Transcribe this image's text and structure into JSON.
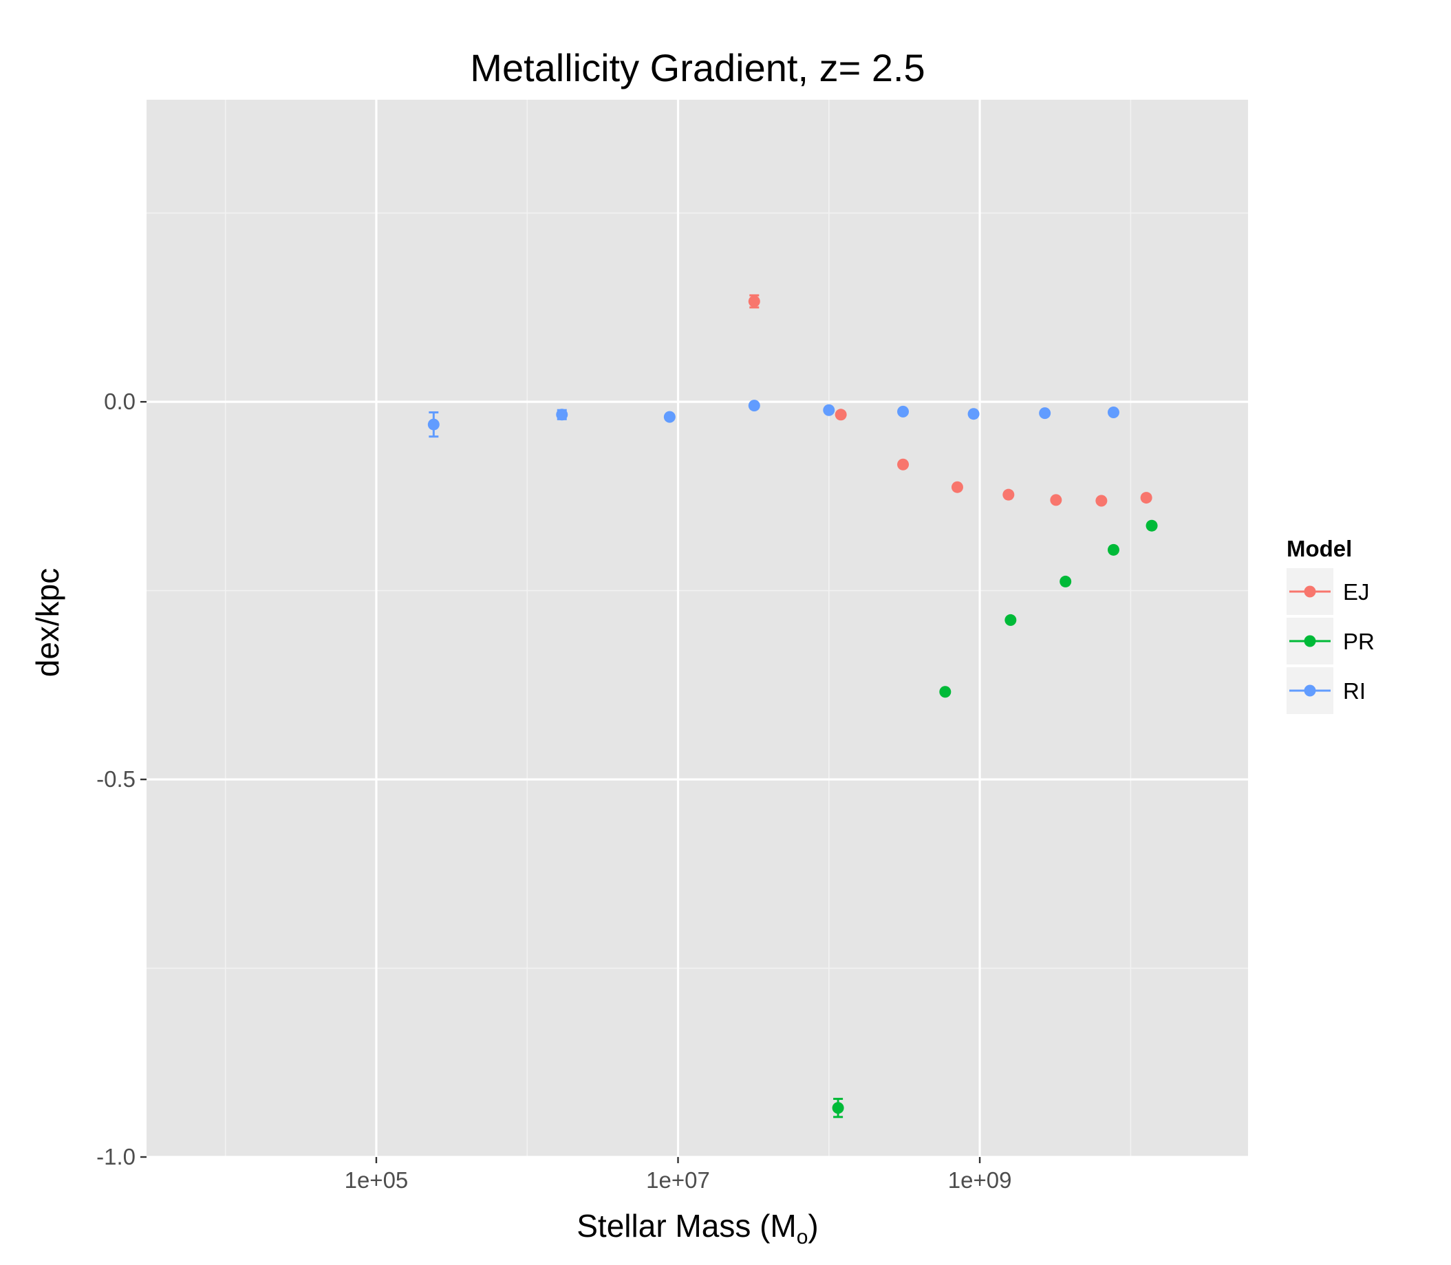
{
  "chart_data": {
    "type": "scatter",
    "title": "Metallicity Gradient, z= 2.5",
    "xlabel_main": "Stellar Mass (M",
    "xlabel_sub": "o",
    "xlabel_close": ")",
    "ylabel": "dex/kpc",
    "x_scale": "log10",
    "xlim": [
      3000.0,
      60000000000.0
    ],
    "ylim": [
      -1.0,
      0.4
    ],
    "x_ticks": [
      100000,
      10000000,
      1000000000
    ],
    "x_tick_labels": [
      "1e+05",
      "1e+07",
      "1e+09"
    ],
    "y_ticks": [
      0.0,
      -0.5,
      -1.0
    ],
    "y_tick_labels": [
      "0.0",
      "-0.5",
      "-1.0"
    ],
    "grid": true,
    "legend": {
      "title": "Model",
      "position": "right",
      "entries": [
        "EJ",
        "PR",
        "RI"
      ]
    },
    "series": [
      {
        "name": "EJ",
        "color": "#F8766D",
        "points": [
          {
            "x": 32000000.0,
            "y": 0.133,
            "err": 0.008
          },
          {
            "x": 120000000.0,
            "y": -0.017,
            "err": 0.0
          },
          {
            "x": 310000000.0,
            "y": -0.083,
            "err": 0.0
          },
          {
            "x": 710000000.0,
            "y": -0.113,
            "err": 0.0
          },
          {
            "x": 1550000000.0,
            "y": -0.123,
            "err": 0.0
          },
          {
            "x": 3200000000.0,
            "y": -0.13,
            "err": 0.0
          },
          {
            "x": 6400000000.0,
            "y": -0.131,
            "err": 0.0
          },
          {
            "x": 12700000000.0,
            "y": -0.127,
            "err": 0.0
          }
        ]
      },
      {
        "name": "PR",
        "color": "#00BA38",
        "points": [
          {
            "x": 115000000.0,
            "y": -0.935,
            "err": 0.012
          },
          {
            "x": 590000000.0,
            "y": -0.384,
            "err": 0.0
          },
          {
            "x": 1600000000.0,
            "y": -0.289,
            "err": 0.0
          },
          {
            "x": 3700000000.0,
            "y": -0.238,
            "err": 0.0
          },
          {
            "x": 7700000000.0,
            "y": -0.196,
            "err": 0.0
          },
          {
            "x": 13800000000.0,
            "y": -0.164,
            "err": 0.0
          }
        ]
      },
      {
        "name": "RI",
        "color": "#619CFF",
        "points": [
          {
            "x": 240000.0,
            "y": -0.03,
            "err": 0.016
          },
          {
            "x": 1700000.0,
            "y": -0.017,
            "err": 0.006
          },
          {
            "x": 8800000.0,
            "y": -0.02,
            "err": 0.0
          },
          {
            "x": 32000000.0,
            "y": -0.005,
            "err": 0.0
          },
          {
            "x": 100000000.0,
            "y": -0.011,
            "err": 0.0
          },
          {
            "x": 310000000.0,
            "y": -0.013,
            "err": 0.0
          },
          {
            "x": 910000000.0,
            "y": -0.016,
            "err": 0.0
          },
          {
            "x": 2700000000.0,
            "y": -0.015,
            "err": 0.0
          },
          {
            "x": 7700000000.0,
            "y": -0.014,
            "err": 0.0
          }
        ]
      }
    ]
  }
}
